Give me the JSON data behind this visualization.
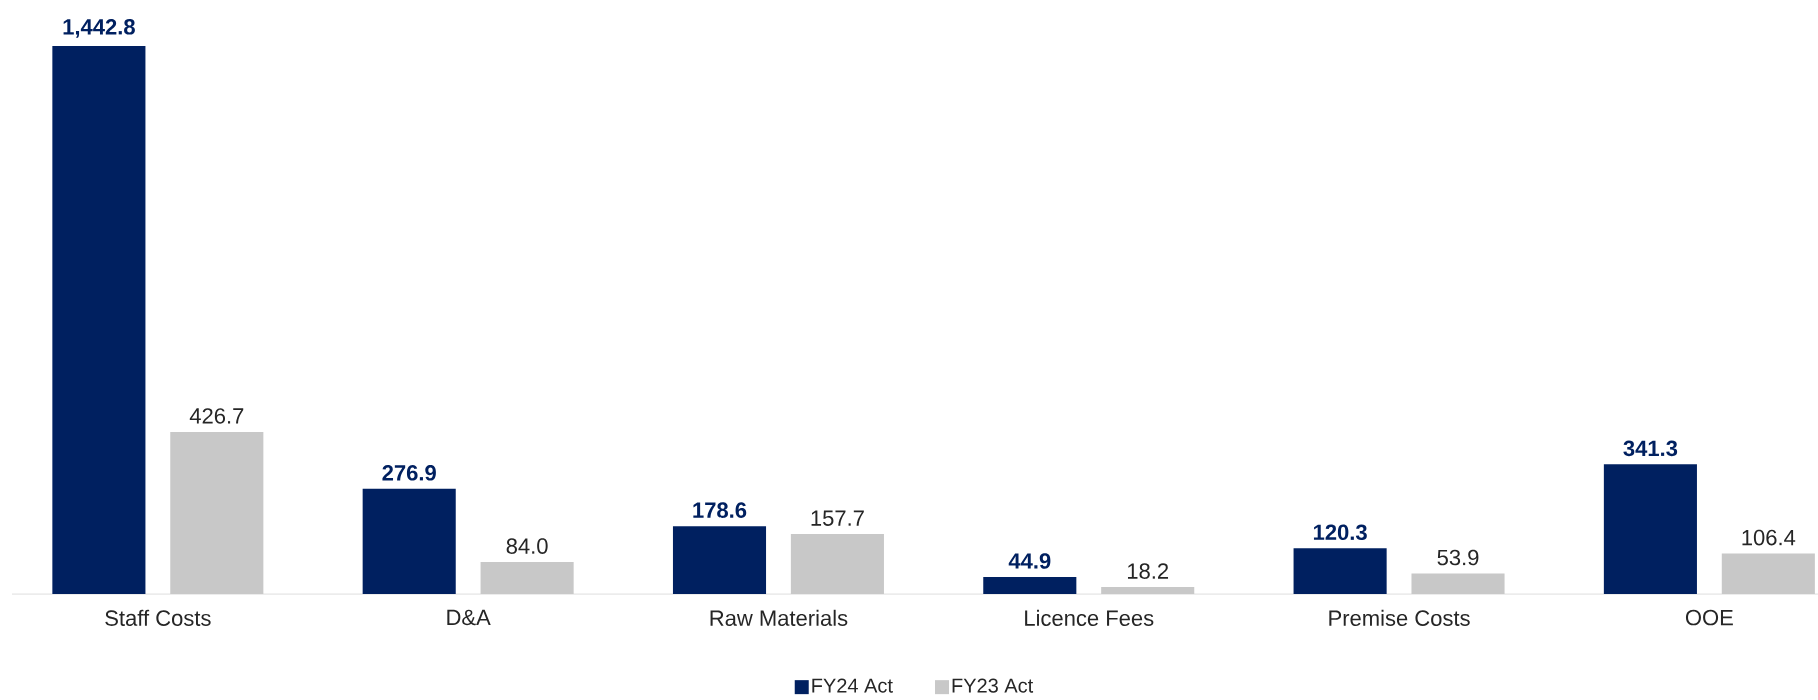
{
  "chart_data": {
    "type": "bar",
    "categories": [
      "Staff Costs",
      "D&A",
      "Raw Materials",
      "Licence Fees",
      "Premise Costs",
      "OOE"
    ],
    "series": [
      {
        "name": "FY24 Act",
        "color": "#002060",
        "values": [
          1442.8,
          276.9,
          178.6,
          44.9,
          120.3,
          341.3
        ],
        "value_labels": [
          "1,442.8",
          "276.9",
          "178.6",
          "44.9",
          "120.3",
          "341.3"
        ]
      },
      {
        "name": "FY23 Act",
        "color": "#c8c8c8",
        "values": [
          426.7,
          84.0,
          157.7,
          18.2,
          53.9,
          106.4
        ],
        "value_labels": [
          "426.7",
          "84.0",
          "157.7",
          "18.2",
          "53.9",
          "106.4"
        ]
      }
    ],
    "legend": "bottom"
  }
}
